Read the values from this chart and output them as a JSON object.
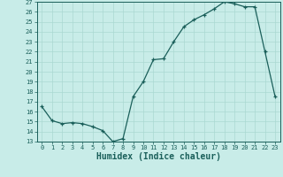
{
  "x": [
    0,
    1,
    2,
    3,
    4,
    5,
    6,
    7,
    8,
    9,
    10,
    11,
    12,
    13,
    14,
    15,
    16,
    17,
    18,
    19,
    20,
    21,
    22,
    23
  ],
  "y": [
    16.5,
    15.1,
    14.8,
    14.9,
    14.8,
    14.5,
    14.1,
    13.0,
    13.3,
    17.5,
    19.0,
    21.2,
    21.3,
    23.0,
    24.5,
    25.2,
    25.7,
    26.3,
    27.0,
    26.8,
    26.5,
    26.5,
    22.0,
    17.5
  ],
  "xlabel": "Humidex (Indice chaleur)",
  "ylim": [
    13,
    27
  ],
  "xlim": [
    -0.5,
    23.5
  ],
  "yticks": [
    13,
    14,
    15,
    16,
    17,
    18,
    19,
    20,
    21,
    22,
    23,
    24,
    25,
    26,
    27
  ],
  "xticks": [
    0,
    1,
    2,
    3,
    4,
    5,
    6,
    7,
    8,
    9,
    10,
    11,
    12,
    13,
    14,
    15,
    16,
    17,
    18,
    19,
    20,
    21,
    22,
    23
  ],
  "line_color": "#1a5f5a",
  "marker": "+",
  "bg_color": "#c8ece8",
  "grid_color": "#aad8d2",
  "axis_color": "#1a5f5a",
  "tick_fontsize": 5.0,
  "xlabel_fontsize": 7.0
}
